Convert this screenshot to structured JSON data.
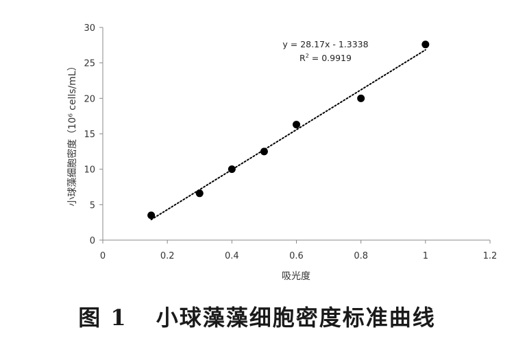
{
  "chart_data": {
    "type": "scatter",
    "x": [
      0.15,
      0.3,
      0.4,
      0.5,
      0.6,
      0.8,
      1.0
    ],
    "y": [
      3.5,
      6.6,
      10.0,
      12.5,
      16.3,
      20.0,
      27.6
    ],
    "xlabel": "吸光度",
    "ylabel": "小球藻细胞密度（10⁶ cells/mL）",
    "xlim": [
      0,
      1.2
    ],
    "ylim": [
      0,
      30
    ],
    "xticks": [
      "0",
      "0.2",
      "0.4",
      "0.6",
      "0.8",
      "1",
      "1.2"
    ],
    "yticks": [
      "0",
      "5",
      "10",
      "15",
      "20",
      "25",
      "30"
    ],
    "trendline": {
      "type": "linear",
      "slope": 28.17,
      "intercept": -1.3338,
      "style": "dotted",
      "x_range": [
        0.15,
        1.0
      ]
    },
    "annotations": {
      "equation": "y = 28.17x - 1.3338",
      "r2_prefix": "R",
      "r2_sup": "2",
      "r2_value": " = 0.9919"
    },
    "grid": false,
    "legend": "none",
    "marker_color": "#000000"
  },
  "caption": {
    "figure_number": "图 1",
    "title": "小球藻藻细胞密度标准曲线"
  }
}
